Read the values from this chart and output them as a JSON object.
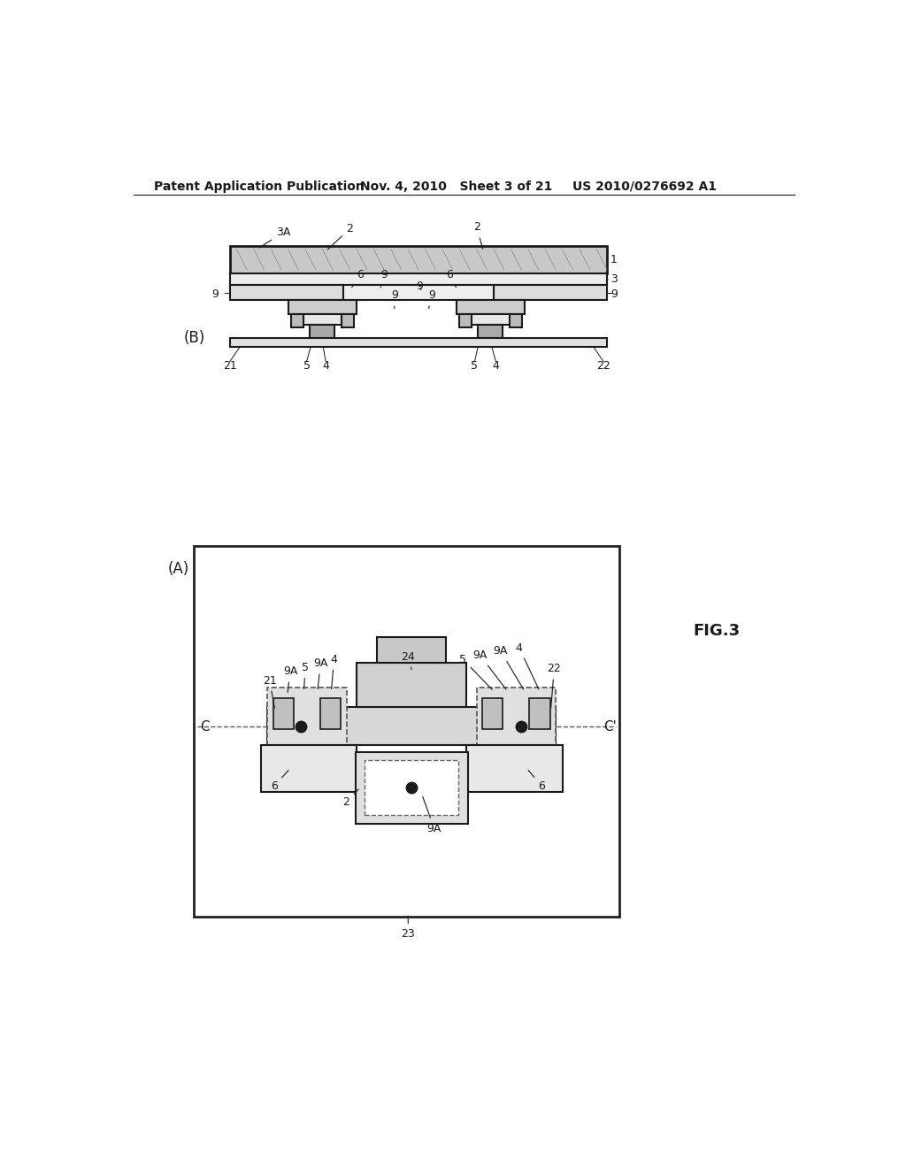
{
  "bg_color": "#ffffff",
  "header_left": "Patent Application Publication",
  "header_mid": "Nov. 4, 2010   Sheet 3 of 21",
  "header_right": "US 2010/0276692 A1",
  "fig_label": "FIG.3",
  "label_B": "(B)",
  "label_A": "(A)"
}
